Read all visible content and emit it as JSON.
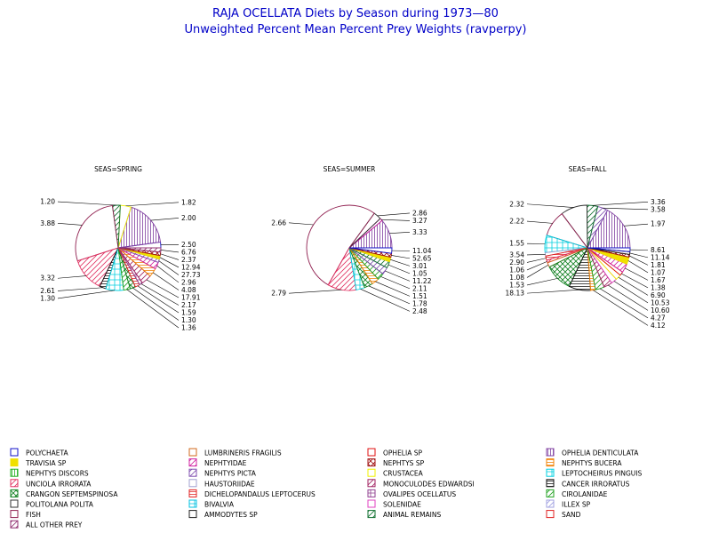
{
  "title": "RAJA OCELLATA Diets by Season during 1973—80",
  "subtitle": "Unweighted Percent Mean Percent Prey  Weights (ravperpy)",
  "chart_data": [
    {
      "type": "pie",
      "title": "SEAS=SPRING",
      "slices": [
        {
          "category": "POLYCHAETA",
          "value": 2.17
        },
        {
          "category": "OPHELIA DENTICULATA",
          "value": 17.91
        },
        {
          "category": "CRUSTACEA",
          "value": 4.08
        },
        {
          "category": "ANIMAL REMAINS",
          "value": 2.96
        },
        {
          "category": "FISH",
          "value": 27.73
        },
        {
          "category": "UNCIOLA IRRORATA",
          "value": 12.94
        },
        {
          "category": "CANCER IRRORATUS",
          "value": 2.37
        },
        {
          "category": "LEPTOCHEIRUS PINGUIS",
          "value": 6.76
        },
        {
          "category": "CIROLANIDAE",
          "value": 2.5
        },
        {
          "category": "CRANGON SEPTEMSPINOSA",
          "value": 2.0
        },
        {
          "category": "DICHELOPANDALUS LEPTOCERUS",
          "value": 1.82
        },
        {
          "category": "OVALIPES OCELLATUS",
          "value": 1.2
        },
        {
          "category": "MONOCULODES EDWARDSI",
          "value": 3.88
        },
        {
          "category": "NEPHTYS BUCERA",
          "value": 3.32
        },
        {
          "category": "NEPHTYIDAE",
          "value": 2.61
        },
        {
          "category": "NEPHTYS PICTA",
          "value": 1.3
        },
        {
          "category": "TRAVISIA SP",
          "value": 1.36
        },
        {
          "category": "NEPHTYS SP",
          "value": 1.3
        },
        {
          "category": "ALL OTHER PREY",
          "value": 1.59
        }
      ],
      "labels": [
        "2.50",
        "2.00",
        "1.82",
        "1.20",
        "3.88",
        "3.32",
        "2.61",
        "1.30",
        "1.36",
        "1.30",
        "1.59",
        "2.17",
        "17.91",
        "4.08",
        "2.96",
        "27.73",
        "12.94",
        "2.37",
        "6.76"
      ]
    },
    {
      "type": "pie",
      "title": "SEAS=SUMMER",
      "slices": [
        {
          "category": "OPHELIA DENTICULATA",
          "value": 11.22
        },
        {
          "category": "NEPHTYIDAE",
          "value": 1.05
        },
        {
          "category": "POLITOLANA POLITA",
          "value": 3.01
        },
        {
          "category": "FISH",
          "value": 52.65
        },
        {
          "category": "UNCIOLA IRRORATA",
          "value": 11.04
        },
        {
          "category": "LEPTOCHEIRUS PINGUIS",
          "value": 3.33
        },
        {
          "category": "CRANGON SEPTEMSPINOSA",
          "value": 3.27
        },
        {
          "category": "NEPHTYS BUCERA",
          "value": 2.86
        },
        {
          "category": "CIROLANIDAE",
          "value": 2.66
        },
        {
          "category": "NEPHTYS PICTA",
          "value": 2.79
        },
        {
          "category": "ANIMAL REMAINS",
          "value": 2.48
        },
        {
          "category": "TRAVISIA SP",
          "value": 1.78
        },
        {
          "category": "NEPHTYS SP",
          "value": 1.51
        },
        {
          "category": "POLYCHAETA",
          "value": 2.11
        }
      ],
      "labels": [
        "3.33",
        "3.27",
        "2.86",
        "2.66",
        "2.79",
        "2.48",
        "1.78",
        "1.51",
        "2.11",
        "11.22",
        "1.05",
        "3.01",
        "52.65",
        "11.04"
      ]
    },
    {
      "type": "pie",
      "title": "SEAS=FALL",
      "slices": [
        {
          "category": "OPHELIA DENTICULATA",
          "value": 18.13
        },
        {
          "category": "NEPHTYS PICTA",
          "value": 4.12
        },
        {
          "category": "ANIMAL REMAINS",
          "value": 4.27
        },
        {
          "category": "POLITOLANA POLITA",
          "value": 10.6
        },
        {
          "category": "FISH",
          "value": 10.53
        },
        {
          "category": "LEPTOCHEIRUS PINGUIS",
          "value": 6.9
        },
        {
          "category": "HAUSTORIIDAE",
          "value": 1.38
        },
        {
          "category": "DICHELOPANDALUS LEPTOCERUS",
          "value": 1.67
        },
        {
          "category": "UNCIOLA IRRORATA",
          "value": 1.07
        },
        {
          "category": "LUMBRINERIS FRAGILIS",
          "value": 1.81
        },
        {
          "category": "CRANGON SEPTEMSPINOSA",
          "value": 11.14
        },
        {
          "category": "CANCER IRRORATUS",
          "value": 8.61
        },
        {
          "category": "NEPHTYS BUCERA",
          "value": 1.97
        },
        {
          "category": "CIROLANIDAE",
          "value": 3.58
        },
        {
          "category": "MONOCULODES EDWARDSI",
          "value": 3.36
        },
        {
          "category": "SOLENIDAE",
          "value": 2.32
        },
        {
          "category": "CRUSTACEA",
          "value": 2.22
        },
        {
          "category": "OPHELIA SP",
          "value": 1.55
        },
        {
          "category": "NEPHTYIDAE",
          "value": 3.54
        },
        {
          "category": "TRAVISIA SP",
          "value": 2.9
        },
        {
          "category": "NEPHTYS SP",
          "value": 1.06
        },
        {
          "category": "AMMODYTES SP",
          "value": 1.08
        },
        {
          "category": "POLYCHAETA",
          "value": 1.53
        }
      ],
      "labels": [
        "1.97",
        "3.58",
        "3.36",
        "2.32",
        "2.22",
        "1.55",
        "3.54",
        "2.90",
        "1.06",
        "1.08",
        "1.53",
        "18.13",
        "4.12",
        "4.27",
        "10.60",
        "10.53",
        "6.90",
        "1.38",
        "1.67",
        "1.07",
        "1.81",
        "11.14",
        "8.61"
      ]
    }
  ],
  "legend": [
    {
      "label": "POLYCHAETA",
      "color": "#1010c8",
      "pattern": "empty"
    },
    {
      "label": "LUMBRINERIS FRAGILIS",
      "color": "#d2691e",
      "pattern": "empty"
    },
    {
      "label": "OPHELIA SP",
      "color": "#e01010",
      "pattern": "empty"
    },
    {
      "label": "OPHELIA DENTICULATA",
      "color": "#8040a0",
      "pattern": "vert"
    },
    {
      "label": "TRAVISIA SP",
      "color": "#f0e000",
      "pattern": "solid"
    },
    {
      "label": "NEPHTYIDAE",
      "color": "#d020a0",
      "pattern": "diag"
    },
    {
      "label": "NEPHTYS SP",
      "color": "#a01010",
      "pattern": "xhatch"
    },
    {
      "label": "NEPHTYS BUCERA",
      "color": "#f08000",
      "pattern": "horiz"
    },
    {
      "label": "NEPHTYS DISCORS",
      "color": "#20b020",
      "pattern": "vert"
    },
    {
      "label": "NEPHTYS PICTA",
      "color": "#8050b0",
      "pattern": "diag"
    },
    {
      "label": "CRUSTACEA",
      "color": "#f0f000",
      "pattern": "empty"
    },
    {
      "label": "LEPTOCHEIRUS PINGUIS",
      "color": "#00d0e0",
      "pattern": "grid"
    },
    {
      "label": "UNCIOLA IRRORATA",
      "color": "#e03060",
      "pattern": "diag"
    },
    {
      "label": "HAUSTORIIDAE",
      "color": "#a0a0d0",
      "pattern": "empty"
    },
    {
      "label": "MONOCULODES EDWARDSI",
      "color": "#a02060",
      "pattern": "diag"
    },
    {
      "label": "CANCER IRRORATUS",
      "color": "#101010",
      "pattern": "horiz"
    },
    {
      "label": "CRANGON SEPTEMSPINOSA",
      "color": "#108020",
      "pattern": "xhatch"
    },
    {
      "label": "DICHELOPANDALUS LEPTOCERUS",
      "color": "#e02020",
      "pattern": "horiz"
    },
    {
      "label": "OVALIPES OCELLATUS",
      "color": "#904090",
      "pattern": "grid"
    },
    {
      "label": "CIROLANIDAE",
      "color": "#20a020",
      "pattern": "diag"
    },
    {
      "label": "POLITOLANA POLITA",
      "color": "#303030",
      "pattern": "empty"
    },
    {
      "label": "BIVALVIA",
      "color": "#00c0e0",
      "pattern": "grid"
    },
    {
      "label": "SOLENIDAE",
      "color": "#e040c0",
      "pattern": "empty"
    },
    {
      "label": "ILLEX SP",
      "color": "#a0a0e0",
      "pattern": "diag"
    },
    {
      "label": "FISH",
      "color": "#902050",
      "pattern": "empty"
    },
    {
      "label": "AMMODYTES SP",
      "color": "#202020",
      "pattern": "empty"
    },
    {
      "label": "ANIMAL REMAINS",
      "color": "#107030",
      "pattern": "diag"
    },
    {
      "label": "SAND",
      "color": "#e02020",
      "pattern": "empty"
    },
    {
      "label": "ALL OTHER PREY",
      "color": "#903070",
      "pattern": "diag"
    }
  ]
}
